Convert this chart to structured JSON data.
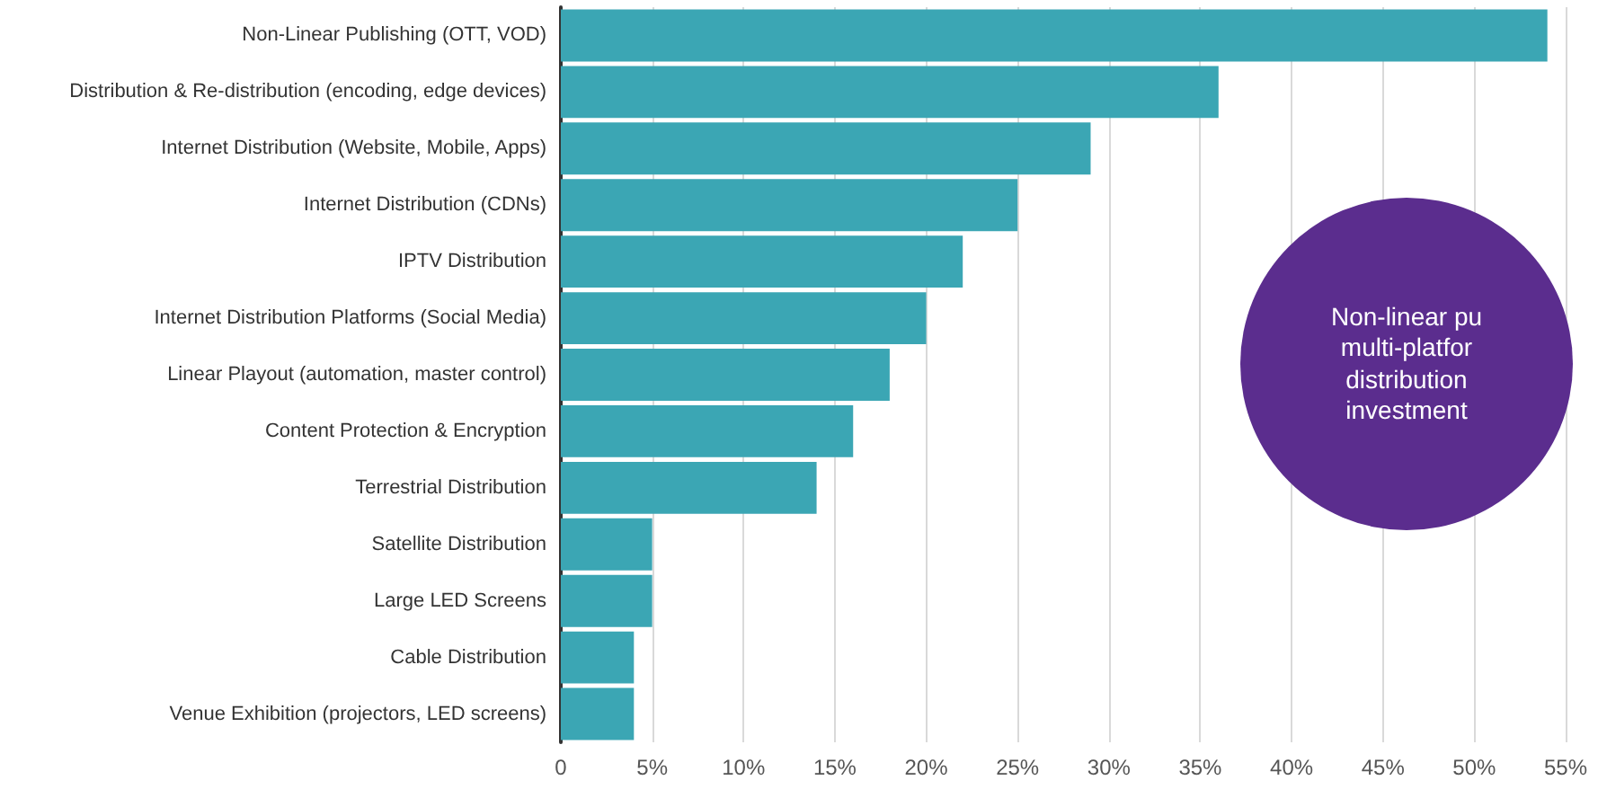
{
  "chart_data": {
    "type": "bar",
    "orientation": "horizontal",
    "categories": [
      "Non-Linear Publishing (OTT, VOD)",
      "Distribution & Re-distribution (encoding, edge devices)",
      "Internet Distribution (Website, Mobile, Apps)",
      "Internet Distribution (CDNs)",
      "IPTV Distribution",
      "Internet Distribution Platforms (Social Media)",
      "Linear Playout (automation, master control)",
      "Content Protection & Encryption",
      "Terrestrial Distribution",
      "Satellite Distribution",
      "Large LED Screens",
      "Cable Distribution",
      "Venue Exhibition (projectors, LED screens)"
    ],
    "values": [
      54,
      36,
      29,
      25,
      22,
      20,
      18,
      16,
      14,
      5,
      5,
      4,
      4
    ],
    "color": "#3ba6b4",
    "xlim": [
      0,
      55
    ],
    "xticks": [
      0,
      {
        "value": 5,
        "label": "5%"
      },
      {
        "value": 10,
        "label": "10%"
      },
      {
        "value": 15,
        "label": "15%"
      },
      {
        "value": 20,
        "label": "20%"
      },
      {
        "value": 25,
        "label": "25%"
      },
      {
        "value": 30,
        "label": "30%"
      },
      {
        "value": 35,
        "label": "35%"
      },
      {
        "value": 40,
        "label": "40%"
      },
      {
        "value": 45,
        "label": "45%"
      },
      {
        "value": 50,
        "label": "50%"
      },
      {
        "value": 55,
        "label": "55%"
      }
    ],
    "grid": "x",
    "annotations": [
      "Non-linear pu\nmulti-platfor\ndistribution\ninvestment"
    ]
  }
}
